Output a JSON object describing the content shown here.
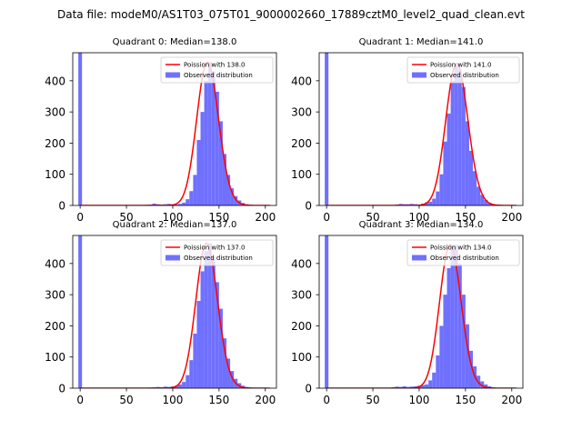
{
  "figure": {
    "suptitle": "Data file: modeM0/AS1T03_075T01_9000002660_17889cztM0_level2_quad_clean.evt"
  },
  "colors": {
    "hist": "#7070ff",
    "poisson": "#ff0000",
    "axes": "#000000"
  },
  "chart_data": [
    {
      "type": "bar",
      "title": "Quadrant 0: Median=138.0",
      "median": 138.0,
      "legend": [
        "Poission with 138.0",
        "Observed distribution"
      ],
      "legend_position": "top-right",
      "xlabel": "",
      "ylabel": "",
      "xlim": [
        -8,
        212
      ],
      "ylim": [
        0,
        490
      ],
      "xticks": [
        0,
        50,
        100,
        150,
        200
      ],
      "yticks": [
        0,
        100,
        200,
        300,
        400
      ],
      "bin_width": 4,
      "bins": [
        [
          -2,
          490
        ],
        [
          70,
          2
        ],
        [
          74,
          3
        ],
        [
          78,
          6
        ],
        [
          82,
          4
        ],
        [
          86,
          3
        ],
        [
          90,
          4
        ],
        [
          94,
          5
        ],
        [
          98,
          4
        ],
        [
          102,
          3
        ],
        [
          106,
          5
        ],
        [
          110,
          9
        ],
        [
          114,
          20
        ],
        [
          118,
          46
        ],
        [
          122,
          98
        ],
        [
          126,
          210
        ],
        [
          130,
          300
        ],
        [
          134,
          400
        ],
        [
          138,
          460
        ],
        [
          142,
          430
        ],
        [
          146,
          365
        ],
        [
          150,
          270
        ],
        [
          154,
          165
        ],
        [
          158,
          98
        ],
        [
          162,
          55
        ],
        [
          166,
          30
        ],
        [
          170,
          16
        ],
        [
          174,
          8
        ],
        [
          178,
          4
        ],
        [
          182,
          2
        ]
      ]
    },
    {
      "type": "bar",
      "title": "Quadrant 1: Median=141.0",
      "median": 141.0,
      "legend": [
        "Poission with 141.0",
        "Observed distribution"
      ],
      "legend_position": "top-right",
      "xlabel": "",
      "ylabel": "",
      "xlim": [
        -8,
        212
      ],
      "ylim": [
        0,
        490
      ],
      "xticks": [
        0,
        50,
        100,
        150,
        200
      ],
      "yticks": [
        0,
        100,
        200,
        300,
        400
      ],
      "bin_width": 4,
      "bins": [
        [
          -2,
          490
        ],
        [
          74,
          3
        ],
        [
          78,
          5
        ],
        [
          82,
          4
        ],
        [
          86,
          4
        ],
        [
          90,
          5
        ],
        [
          94,
          4
        ],
        [
          98,
          3
        ],
        [
          102,
          6
        ],
        [
          106,
          10
        ],
        [
          110,
          12
        ],
        [
          114,
          22
        ],
        [
          118,
          45
        ],
        [
          122,
          100
        ],
        [
          126,
          205
        ],
        [
          130,
          295
        ],
        [
          134,
          400
        ],
        [
          138,
          455
        ],
        [
          142,
          435
        ],
        [
          146,
          380
        ],
        [
          150,
          270
        ],
        [
          154,
          175
        ],
        [
          158,
          110
        ],
        [
          162,
          60
        ],
        [
          166,
          34
        ],
        [
          170,
          18
        ],
        [
          174,
          9
        ],
        [
          178,
          4
        ],
        [
          182,
          2
        ]
      ]
    },
    {
      "type": "bar",
      "title": "Quadrant 2: Median=137.0",
      "median": 137.0,
      "legend": [
        "Poission with 137.0",
        "Observed distribution"
      ],
      "legend_position": "top-right",
      "xlabel": "",
      "ylabel": "",
      "xlim": [
        -8,
        212
      ],
      "ylim": [
        0,
        490
      ],
      "xticks": [
        0,
        50,
        100,
        150,
        200
      ],
      "yticks": [
        0,
        100,
        200,
        300,
        400
      ],
      "bin_width": 4,
      "bins": [
        [
          -2,
          490
        ],
        [
          74,
          2
        ],
        [
          78,
          3
        ],
        [
          82,
          4
        ],
        [
          86,
          3
        ],
        [
          90,
          5
        ],
        [
          94,
          4
        ],
        [
          98,
          6
        ],
        [
          102,
          8
        ],
        [
          106,
          12
        ],
        [
          110,
          20
        ],
        [
          114,
          42
        ],
        [
          118,
          90
        ],
        [
          122,
          175
        ],
        [
          126,
          280
        ],
        [
          130,
          375
        ],
        [
          134,
          440
        ],
        [
          138,
          465
        ],
        [
          142,
          420
        ],
        [
          146,
          340
        ],
        [
          150,
          255
        ],
        [
          154,
          160
        ],
        [
          158,
          95
        ],
        [
          162,
          55
        ],
        [
          166,
          30
        ],
        [
          170,
          16
        ],
        [
          174,
          8
        ],
        [
          178,
          4
        ],
        [
          182,
          2
        ]
      ]
    },
    {
      "type": "bar",
      "title": "Quadrant 3: Median=134.0",
      "median": 134.0,
      "legend": [
        "Poission with 134.0",
        "Observed distribution"
      ],
      "legend_position": "top-right",
      "xlabel": "",
      "ylabel": "",
      "xlim": [
        -8,
        212
      ],
      "ylim": [
        0,
        490
      ],
      "xticks": [
        0,
        50,
        100,
        150,
        200
      ],
      "yticks": [
        0,
        100,
        200,
        300,
        400
      ],
      "bin_width": 4,
      "bins": [
        [
          -2,
          490
        ],
        [
          70,
          3
        ],
        [
          74,
          5
        ],
        [
          78,
          4
        ],
        [
          82,
          6
        ],
        [
          86,
          4
        ],
        [
          90,
          5
        ],
        [
          94,
          6
        ],
        [
          98,
          8
        ],
        [
          102,
          10
        ],
        [
          106,
          12
        ],
        [
          110,
          25
        ],
        [
          114,
          50
        ],
        [
          118,
          105
        ],
        [
          122,
          200
        ],
        [
          126,
          300
        ],
        [
          130,
          385
        ],
        [
          134,
          455
        ],
        [
          138,
          460
        ],
        [
          142,
          400
        ],
        [
          146,
          300
        ],
        [
          150,
          205
        ],
        [
          154,
          120
        ],
        [
          158,
          70
        ],
        [
          162,
          40
        ],
        [
          166,
          22
        ],
        [
          170,
          12
        ],
        [
          174,
          6
        ],
        [
          178,
          3
        ]
      ]
    }
  ]
}
